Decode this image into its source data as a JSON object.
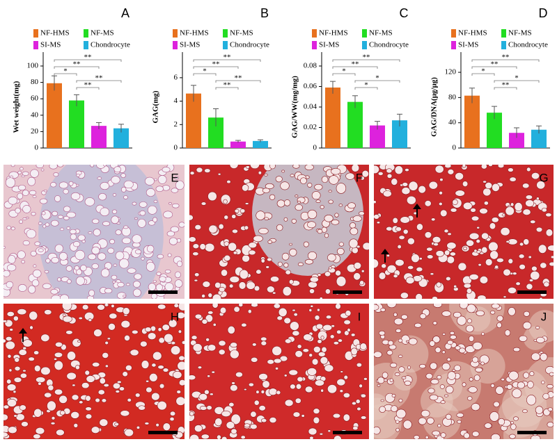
{
  "chart_data": [
    {
      "type": "bar",
      "title": "A",
      "y_label": "Wet weight(mg)",
      "ylim": [
        0,
        100
      ],
      "yticks": [
        0,
        20,
        40,
        60,
        80,
        100
      ],
      "series": [
        {
          "name": "NF-HMS",
          "color": "#e8711e",
          "values": [
            79
          ],
          "errors": [
            9
          ]
        },
        {
          "name": "NF-MS",
          "color": "#22dd22",
          "values": [
            58
          ],
          "errors": [
            7
          ]
        },
        {
          "name": "SI-MS",
          "color": "#dd22dd",
          "values": [
            27
          ],
          "errors": [
            4
          ]
        },
        {
          "name": "Chondrocyte",
          "color": "#22b0dd",
          "values": [
            24
          ],
          "errors": [
            5
          ]
        }
      ],
      "annotations": [
        {
          "from": 0,
          "to": 3,
          "label": "**"
        },
        {
          "from": 0,
          "to": 2,
          "label": "**"
        },
        {
          "from": 0,
          "to": 1,
          "label": "*"
        },
        {
          "from": 1,
          "to": 3,
          "label": "**"
        },
        {
          "from": 1,
          "to": 2,
          "label": "**"
        }
      ]
    },
    {
      "type": "bar",
      "title": "B",
      "y_label": "GAG(mg)",
      "ylim": [
        0,
        7
      ],
      "yticks": [
        0,
        2,
        4,
        6
      ],
      "series": [
        {
          "name": "NF-HMS",
          "color": "#e8711e",
          "values": [
            4.65
          ],
          "errors": [
            0.7
          ]
        },
        {
          "name": "NF-MS",
          "color": "#22dd22",
          "values": [
            2.6
          ],
          "errors": [
            0.75
          ]
        },
        {
          "name": "SI-MS",
          "color": "#dd22dd",
          "values": [
            0.55
          ],
          "errors": [
            0.1
          ]
        },
        {
          "name": "Chondrocyte",
          "color": "#22b0dd",
          "values": [
            0.6
          ],
          "errors": [
            0.1
          ]
        }
      ],
      "annotations": [
        {
          "from": 0,
          "to": 3,
          "label": "**"
        },
        {
          "from": 0,
          "to": 2,
          "label": "**"
        },
        {
          "from": 0,
          "to": 1,
          "label": "*"
        },
        {
          "from": 1,
          "to": 3,
          "label": "**"
        },
        {
          "from": 1,
          "to": 2,
          "label": "**"
        }
      ]
    },
    {
      "type": "bar",
      "title": "C",
      "y_label": "GAG/WW(mg/mg)",
      "ylim": [
        0,
        0.08
      ],
      "yticks": [
        0,
        0.02,
        0.04,
        0.06,
        0.08
      ],
      "series": [
        {
          "name": "NF-HMS",
          "color": "#e8711e",
          "values": [
            0.059
          ],
          "errors": [
            0.006
          ]
        },
        {
          "name": "NF-MS",
          "color": "#22dd22",
          "values": [
            0.045
          ],
          "errors": [
            0.006
          ]
        },
        {
          "name": "SI-MS",
          "color": "#dd22dd",
          "values": [
            0.022
          ],
          "errors": [
            0.004
          ]
        },
        {
          "name": "Chondrocyte",
          "color": "#22b0dd",
          "values": [
            0.027
          ],
          "errors": [
            0.006
          ]
        }
      ],
      "annotations": [
        {
          "from": 0,
          "to": 3,
          "label": "**"
        },
        {
          "from": 0,
          "to": 2,
          "label": "**"
        },
        {
          "from": 0,
          "to": 1,
          "label": "*"
        },
        {
          "from": 1,
          "to": 3,
          "label": "*"
        },
        {
          "from": 1,
          "to": 2,
          "label": "*"
        }
      ]
    },
    {
      "type": "bar",
      "title": "D",
      "y_label": "GAG/DNA(μg/μg)",
      "ylim": [
        0,
        130
      ],
      "yticks": [
        0,
        40,
        80,
        120
      ],
      "series": [
        {
          "name": "NF-HMS",
          "color": "#e8711e",
          "values": [
            83
          ],
          "errors": [
            12
          ]
        },
        {
          "name": "NF-MS",
          "color": "#22dd22",
          "values": [
            56
          ],
          "errors": [
            10
          ]
        },
        {
          "name": "SI-MS",
          "color": "#dd22dd",
          "values": [
            24
          ],
          "errors": [
            8
          ]
        },
        {
          "name": "Chondrocyte",
          "color": "#22b0dd",
          "values": [
            29
          ],
          "errors": [
            6
          ]
        }
      ],
      "annotations": [
        {
          "from": 0,
          "to": 3,
          "label": "**"
        },
        {
          "from": 0,
          "to": 2,
          "label": "**"
        },
        {
          "from": 0,
          "to": 1,
          "label": "*"
        },
        {
          "from": 1,
          "to": 3,
          "label": "*"
        },
        {
          "from": 1,
          "to": 2,
          "label": "**"
        }
      ]
    }
  ],
  "image_panels": [
    {
      "label": "E"
    },
    {
      "label": "F"
    },
    {
      "label": "G"
    },
    {
      "label": "H"
    },
    {
      "label": "I"
    },
    {
      "label": "J"
    }
  ]
}
